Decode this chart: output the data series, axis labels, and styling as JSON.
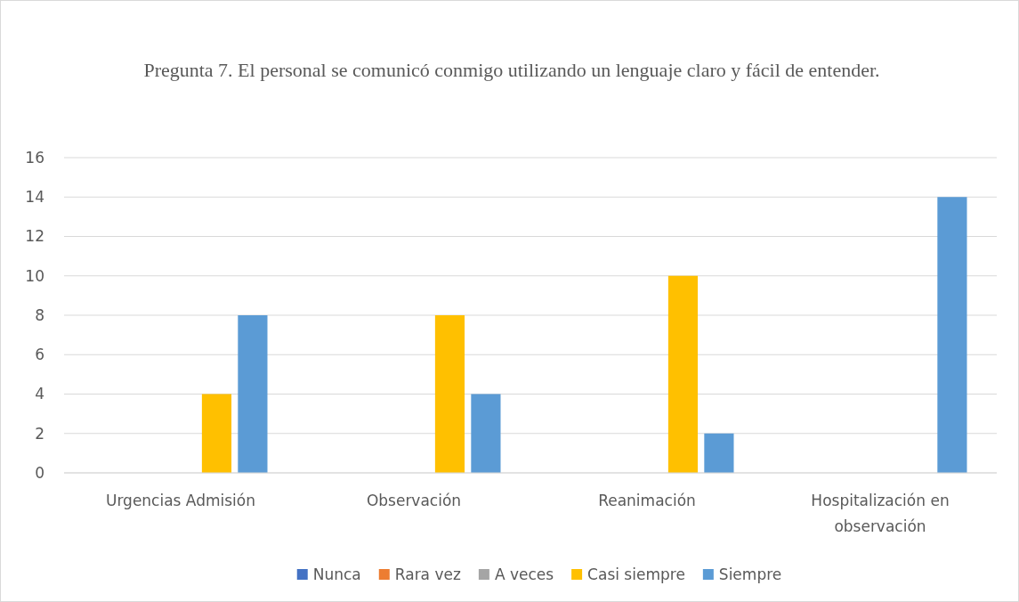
{
  "chart_data": {
    "type": "bar",
    "title": "Pregunta 7. El personal se comunicó conmigo utilizando un lenguaje claro y fácil de entender.",
    "categories": [
      "Urgencias Admisión",
      "Observación",
      "Reanimación",
      "Hospitalización en observación"
    ],
    "series": [
      {
        "name": "Nunca",
        "color": "#4472c4",
        "values": [
          0,
          0,
          0,
          0
        ]
      },
      {
        "name": "Rara vez",
        "color": "#ed7d31",
        "values": [
          0,
          0,
          0,
          0
        ]
      },
      {
        "name": "A veces",
        "color": "#a5a5a5",
        "values": [
          0,
          0,
          0,
          0
        ]
      },
      {
        "name": "Casi siempre",
        "color": "#ffc000",
        "values": [
          4,
          8,
          10,
          0
        ]
      },
      {
        "name": "Siempre",
        "color": "#5b9bd5",
        "values": [
          8,
          4,
          2,
          14
        ]
      }
    ],
    "ylim": [
      0,
      16
    ],
    "yticks": [
      0,
      2,
      4,
      6,
      8,
      10,
      12,
      14,
      16
    ],
    "grid": "y",
    "legend": "bottom"
  }
}
